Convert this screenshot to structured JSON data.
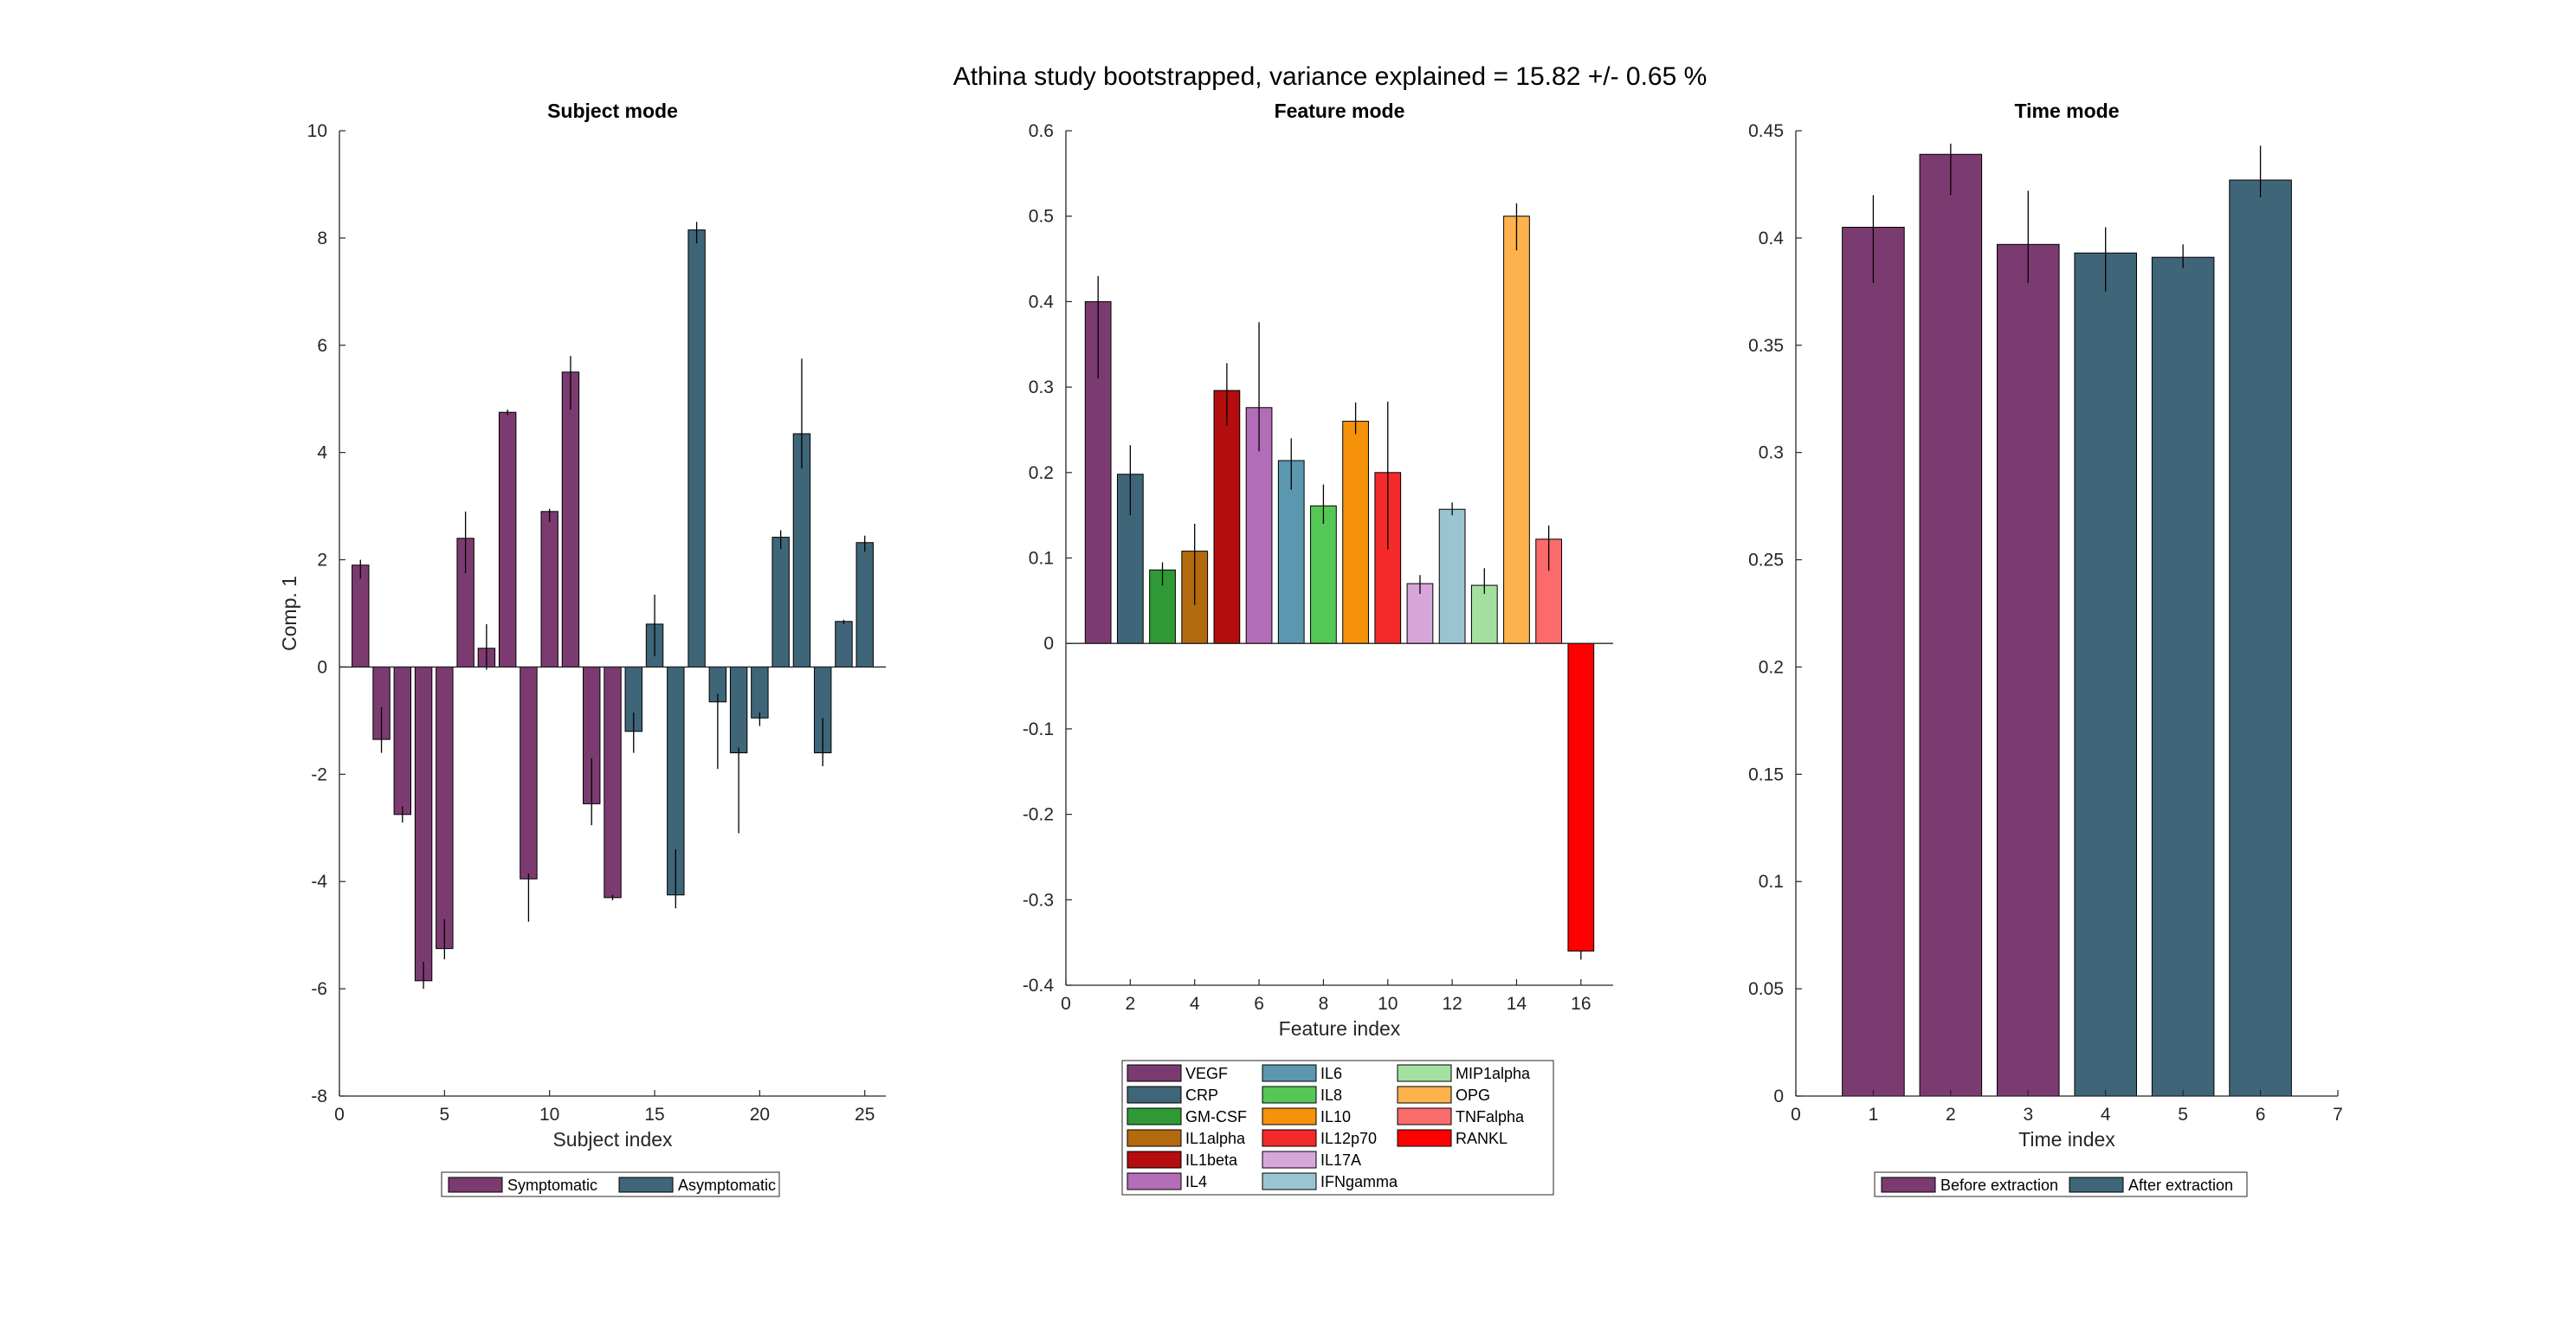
{
  "figure_title": "Athina study bootstrapped, variance explained = 15.82 +/- 0.65 %",
  "colors": {
    "symptomatic": "#7B3B70",
    "asymptomatic": "#3F6578",
    "axis": "#262626"
  },
  "chart_data": [
    {
      "type": "bar",
      "title": "Subject mode",
      "xlabel": "Subject index",
      "ylabel": "Comp. 1",
      "xlim": [
        0,
        26
      ],
      "ylim": [
        -8,
        10
      ],
      "xticks": [
        0,
        5,
        10,
        15,
        20,
        25
      ],
      "yticks": [
        -8,
        -6,
        -4,
        -2,
        0,
        2,
        4,
        6,
        8,
        10
      ],
      "x": [
        1,
        2,
        3,
        4,
        5,
        6,
        7,
        8,
        9,
        10,
        11,
        12,
        13,
        14,
        15,
        16,
        17,
        18,
        19,
        20,
        21,
        22,
        23,
        24,
        25
      ],
      "values": [
        1.9,
        -1.35,
        -2.75,
        -5.85,
        -5.25,
        2.4,
        0.35,
        4.75,
        -3.95,
        2.9,
        5.5,
        -2.55,
        -4.3,
        -1.2,
        0.8,
        -4.25,
        8.15,
        -0.65,
        -1.6,
        -0.95,
        2.42,
        4.35,
        -1.6,
        0.85,
        2.32
      ],
      "err_low": [
        1.65,
        -1.6,
        -2.9,
        -6.0,
        -5.45,
        1.75,
        -0.05,
        4.7,
        -4.75,
        2.7,
        4.8,
        -2.95,
        -4.35,
        -1.6,
        0.2,
        -4.5,
        7.9,
        -1.9,
        -3.1,
        -1.1,
        2.2,
        3.7,
        -1.85,
        0.8,
        2.15
      ],
      "err_high": [
        2.0,
        -0.75,
        -2.6,
        -5.5,
        -4.7,
        2.9,
        0.8,
        4.8,
        -3.85,
        2.95,
        5.8,
        -1.7,
        -4.25,
        -0.85,
        1.35,
        -3.4,
        8.3,
        -0.5,
        -1.5,
        -0.85,
        2.55,
        5.75,
        -0.95,
        0.88,
        2.45
      ],
      "groups": [
        "Symptomatic",
        "Symptomatic",
        "Symptomatic",
        "Symptomatic",
        "Symptomatic",
        "Symptomatic",
        "Symptomatic",
        "Symptomatic",
        "Symptomatic",
        "Symptomatic",
        "Symptomatic",
        "Symptomatic",
        "Symptomatic",
        "Asymptomatic",
        "Asymptomatic",
        "Asymptomatic",
        "Asymptomatic",
        "Asymptomatic",
        "Asymptomatic",
        "Asymptomatic",
        "Asymptomatic",
        "Asymptomatic",
        "Asymptomatic",
        "Asymptomatic",
        "Asymptomatic"
      ],
      "legend": [
        {
          "label": "Symptomatic",
          "color": "#7B3B70"
        },
        {
          "label": "Asymptomatic",
          "color": "#3F6578"
        }
      ],
      "legend_position": "bottom-outside",
      "grid": false
    },
    {
      "type": "bar",
      "title": "Feature mode",
      "xlabel": "Feature index",
      "ylabel": "",
      "xlim": [
        0,
        17
      ],
      "ylim": [
        -0.4,
        0.6
      ],
      "xticks": [
        0,
        2,
        4,
        6,
        8,
        10,
        12,
        14,
        16
      ],
      "xtick_labels": [
        "0",
        "2",
        "4",
        "6",
        "8",
        "10",
        "12",
        "14",
        "16"
      ],
      "yticks": [
        -0.4,
        -0.3,
        -0.2,
        -0.1,
        0,
        0.1,
        0.2,
        0.3,
        0.4,
        0.5,
        0.6
      ],
      "ytick_labels": [
        "-0.4",
        "-0.3",
        "-0.2",
        "-0.1",
        "0",
        "0.1",
        "0.2",
        "0.3",
        "0.4",
        "0.5",
        "0.6"
      ],
      "x": [
        1,
        2,
        3,
        4,
        5,
        6,
        7,
        8,
        9,
        10,
        11,
        12,
        13,
        14,
        15,
        16
      ],
      "categories": [
        "VEGF",
        "CRP",
        "GM-CSF",
        "IL1alpha",
        "IL1beta",
        "IL4",
        "IL6",
        "IL8",
        "IL10",
        "IL12p70",
        "IL17A",
        "IFNgamma",
        "MIP1alpha",
        "OPG",
        "TNFalpha",
        "RANKL"
      ],
      "values": [
        0.4,
        0.198,
        0.086,
        0.108,
        0.296,
        0.276,
        0.214,
        0.161,
        0.26,
        0.2,
        0.07,
        0.157,
        0.068,
        0.5,
        0.122,
        -0.36
      ],
      "err_low": [
        0.31,
        0.15,
        0.068,
        0.045,
        0.255,
        0.225,
        0.18,
        0.14,
        0.245,
        0.11,
        0.058,
        0.15,
        0.058,
        0.46,
        0.085,
        -0.37
      ],
      "err_high": [
        0.43,
        0.232,
        0.095,
        0.14,
        0.328,
        0.376,
        0.24,
        0.186,
        0.282,
        0.283,
        0.08,
        0.165,
        0.088,
        0.515,
        0.138,
        -0.36
      ],
      "colors": [
        "#7B3B70",
        "#3F6578",
        "#2F9A35",
        "#B36A0E",
        "#B30D0D",
        "#B36CB8",
        "#5C97B0",
        "#55C755",
        "#F5920A",
        "#F42A2A",
        "#D6A6D9",
        "#9BC4D1",
        "#A3E0A0",
        "#FDB24D",
        "#FB6B6B",
        "#FF0000"
      ],
      "legend_columns": [
        [
          "VEGF",
          "CRP",
          "GM-CSF",
          "IL1alpha",
          "IL1beta",
          "IL4"
        ],
        [
          "IL6",
          "IL8",
          "IL10",
          "IL12p70",
          "IL17A",
          "IFNgamma"
        ],
        [
          "MIP1alpha",
          "OPG",
          "TNFalpha",
          "RANKL"
        ]
      ],
      "legend_position": "bottom-outside",
      "grid": false
    },
    {
      "type": "bar",
      "title": "Time mode",
      "xlabel": "Time index",
      "ylabel": "",
      "xlim": [
        0,
        7
      ],
      "ylim": [
        0,
        0.45
      ],
      "xticks": [
        0,
        1,
        2,
        3,
        4,
        5,
        6,
        7
      ],
      "yticks": [
        0,
        0.05,
        0.1,
        0.15,
        0.2,
        0.25,
        0.3,
        0.35,
        0.4,
        0.45
      ],
      "ytick_labels": [
        "0",
        "0.05",
        "0.1",
        "0.15",
        "0.2",
        "0.25",
        "0.3",
        "0.35",
        "0.4",
        "0.45"
      ],
      "x": [
        1,
        2,
        3,
        4,
        5,
        6
      ],
      "values": [
        0.405,
        0.439,
        0.397,
        0.393,
        0.391,
        0.427
      ],
      "err_low": [
        0.379,
        0.42,
        0.379,
        0.375,
        0.386,
        0.419
      ],
      "err_high": [
        0.42,
        0.444,
        0.422,
        0.405,
        0.397,
        0.443
      ],
      "groups": [
        "Before extraction",
        "Before extraction",
        "Before extraction",
        "After extraction",
        "After extraction",
        "After extraction"
      ],
      "legend": [
        {
          "label": "Before extraction",
          "color": "#7B3B70"
        },
        {
          "label": "After extraction",
          "color": "#3F6578"
        }
      ],
      "legend_position": "bottom-outside",
      "grid": false
    }
  ]
}
